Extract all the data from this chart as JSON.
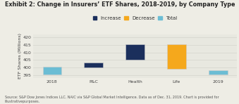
{
  "title": "Exhibit 2: Change in Insurers’ ETF Shares, 2018-2019, by Company Type",
  "ylabel": "ETF Shares (Millions)",
  "xlabel_categories": [
    "2018",
    "P&C",
    "Health",
    "Life",
    "2019"
  ],
  "bar_bottoms": [
    395.5,
    400.0,
    405.0,
    399.0,
    395.5
  ],
  "bar_heights": [
    5.0,
    3.2,
    10.5,
    16.5,
    2.5
  ],
  "bar_colors": [
    "#6bbdd4",
    "#1b2f5c",
    "#1b2f5c",
    "#f5a81c",
    "#6bbdd4"
  ],
  "ylim": [
    393,
    422
  ],
  "yticks": [
    395,
    400,
    405,
    410,
    415,
    420
  ],
  "legend_labels": [
    "Increase",
    "Decrease",
    "Total"
  ],
  "legend_colors": [
    "#1b2f5c",
    "#f5a81c",
    "#6bbdd4"
  ],
  "source_text": "Source: S&P Dow Jones Indices LLC. NAIC via S&P Global Market Intelligence. Data as of Dec. 31, 2019. Chart is provided for\nillustrativepurposes.",
  "bg_color": "#eeede5",
  "plot_bg_color": "#e8e8e0",
  "grid_color": "#d8d8d0",
  "title_fontsize": 5.8,
  "axis_fontsize": 4.5,
  "legend_fontsize": 5.0,
  "source_fontsize": 3.5,
  "bar_width": 0.45
}
